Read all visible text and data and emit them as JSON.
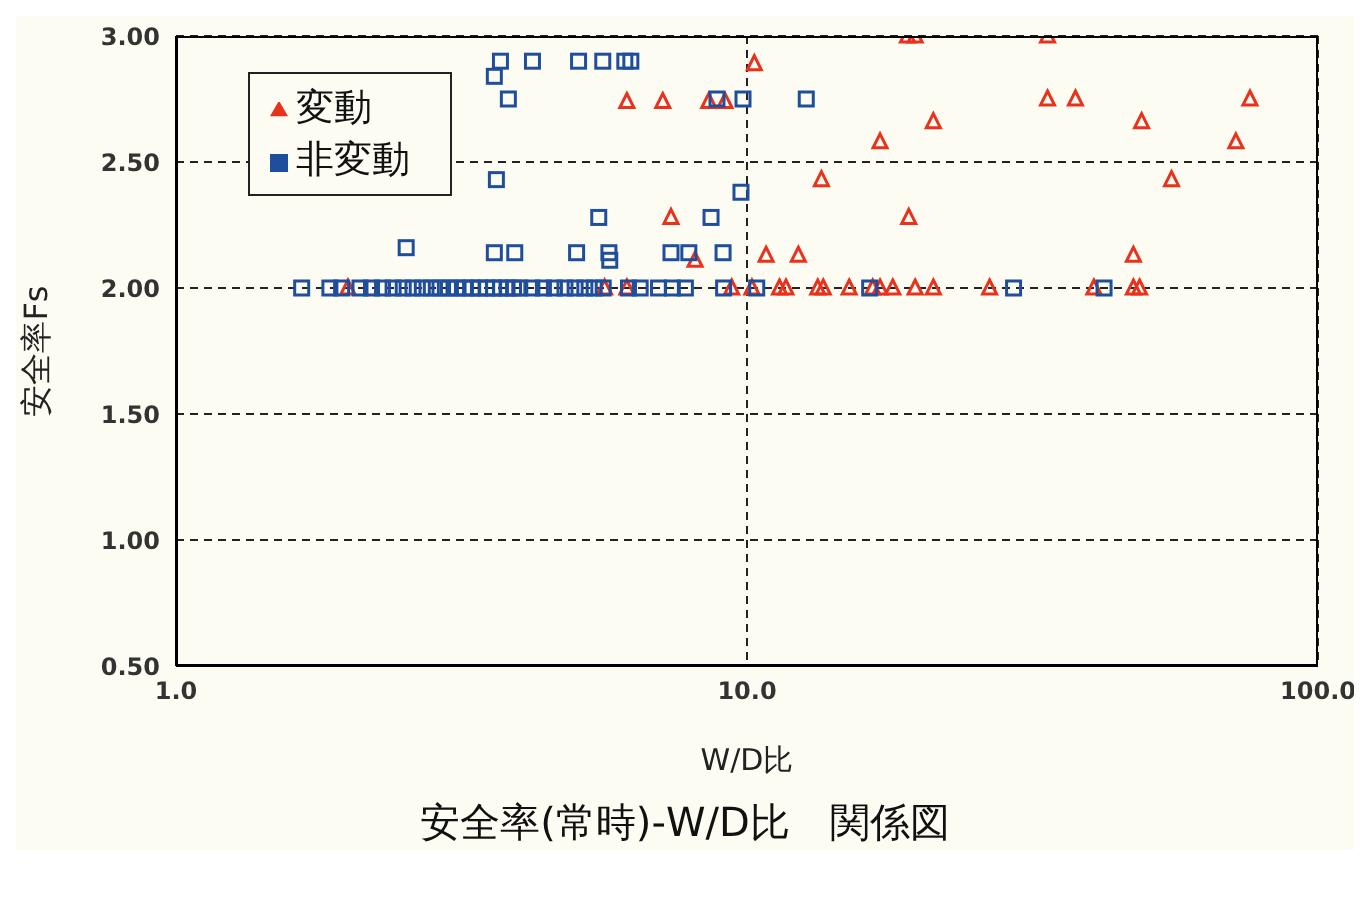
{
  "chart_data": {
    "type": "scatter",
    "title": "安全率(常時)-W/D比　関係図",
    "xlabel": "W/D比",
    "ylabel": "安全率Fs",
    "log": "x",
    "xlim": [
      1,
      100
    ],
    "xticks": [
      {
        "value": 1,
        "label": "1.0"
      },
      {
        "value": 10,
        "label": "10.0"
      },
      {
        "value": 100,
        "label": "100.0"
      }
    ],
    "ylim": [
      0.5,
      3.0
    ],
    "yticks": [
      {
        "value": 0.5,
        "label": "0.50"
      },
      {
        "value": 1.0,
        "label": "1.00"
      },
      {
        "value": 1.5,
        "label": "1.50"
      },
      {
        "value": 2.0,
        "label": "2.00"
      },
      {
        "value": 2.5,
        "label": "2.50"
      },
      {
        "value": 3.0,
        "label": "3.00"
      }
    ],
    "grid": true,
    "legend": "top left",
    "series": [
      {
        "name": "変動",
        "color": "#e8321e",
        "marker": "triangle",
        "x": [
          6.16,
          7.12,
          8.57,
          9.15,
          7.36,
          8.11,
          2.0,
          5.63,
          6.16,
          9.4,
          10.2,
          19.1,
          19.7,
          33.6,
          10.3,
          33.6,
          37.6,
          76.0,
          21.2,
          49.1,
          17.1,
          71.8,
          13.5,
          55.4,
          19.2,
          10.8,
          12.3,
          47.5,
          11.4,
          11.7,
          13.3,
          13.6,
          15.1,
          16.6,
          17.1,
          18.0,
          19.7,
          21.2,
          26.6,
          40.5,
          47.5,
          48.7
        ],
        "values": [
          2.74,
          2.74,
          2.74,
          2.74,
          2.28,
          2.11,
          2.0,
          2.0,
          2.0,
          2.0,
          2.0,
          3.0,
          3.0,
          3.0,
          2.89,
          2.75,
          2.75,
          2.75,
          2.66,
          2.66,
          2.58,
          2.58,
          2.43,
          2.43,
          2.28,
          2.13,
          2.13,
          2.13,
          2.0,
          2.0,
          2.0,
          2.0,
          2.0,
          2.0,
          2.0,
          2.0,
          2.0,
          2.0,
          2.0,
          2.0,
          2.0,
          2.0
        ]
      },
      {
        "name": "非変動",
        "color": "#1f4e9c",
        "marker": "square",
        "x": [
          3.7,
          4.21,
          5.07,
          5.59,
          6.11,
          6.26,
          3.61,
          3.82,
          8.86,
          9.84,
          12.7,
          3.64,
          5.5,
          8.65,
          9.76,
          2.53,
          3.61,
          3.92,
          5.03,
          5.73,
          7.36,
          7.91,
          9.08,
          5.75,
          1.66,
          1.86,
          1.95,
          2.1,
          2.2,
          2.3,
          2.4,
          2.5,
          2.6,
          2.7,
          2.8,
          2.9,
          3.0,
          3.1,
          3.2,
          3.3,
          3.4,
          3.5,
          3.6,
          3.7,
          3.8,
          3.9,
          4.0,
          4.2,
          4.4,
          4.6,
          4.8,
          5.0,
          5.2,
          5.4,
          5.6,
          6.2,
          6.5,
          7.0,
          7.4,
          7.8,
          9.1,
          10.4,
          16.4,
          29.3,
          42.2
        ],
        "values": [
          2.9,
          2.9,
          2.9,
          2.9,
          2.9,
          2.9,
          2.84,
          2.75,
          2.75,
          2.75,
          2.75,
          2.43,
          2.28,
          2.28,
          2.38,
          2.16,
          2.14,
          2.14,
          2.14,
          2.14,
          2.14,
          2.14,
          2.14,
          2.11,
          2.0,
          2.0,
          2.0,
          2.0,
          2.0,
          2.0,
          2.0,
          2.0,
          2.0,
          2.0,
          2.0,
          2.0,
          2.0,
          2.0,
          2.0,
          2.0,
          2.0,
          2.0,
          2.0,
          2.0,
          2.0,
          2.0,
          2.0,
          2.0,
          2.0,
          2.0,
          2.0,
          2.0,
          2.0,
          2.0,
          2.0,
          2.0,
          2.0,
          2.0,
          2.0,
          2.0,
          2.0,
          2.0,
          2.0,
          2.0,
          2.0
        ]
      }
    ]
  }
}
